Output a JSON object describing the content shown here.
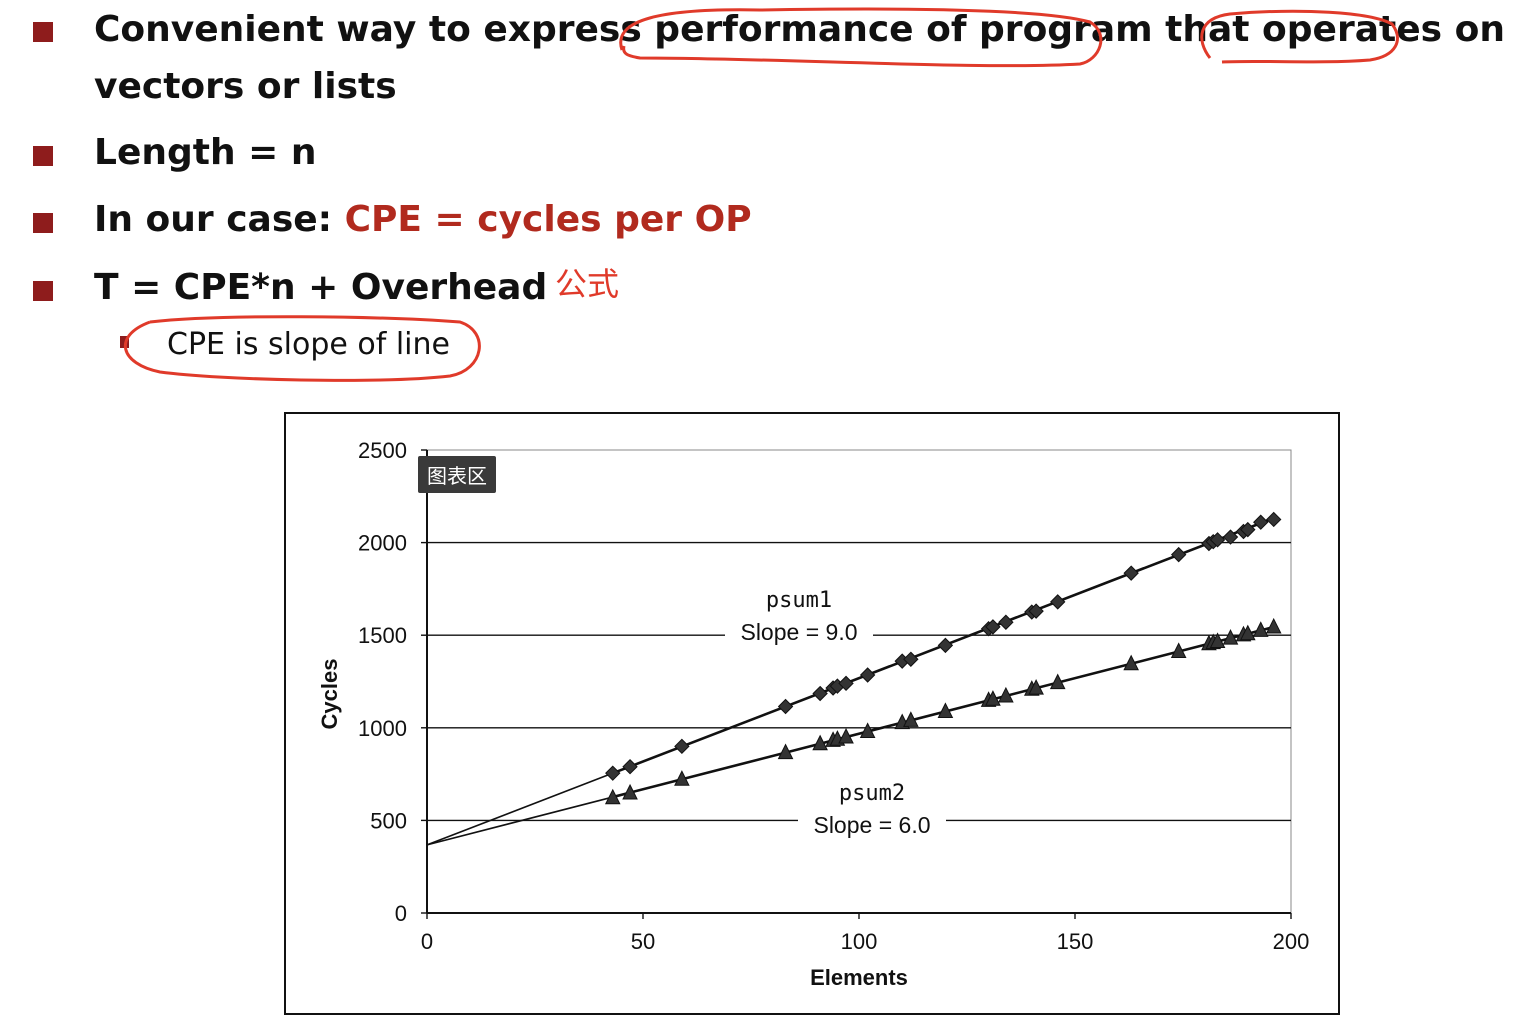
{
  "bullets": {
    "b1_text": "Convenient way to express performance of program that operates on",
    "b1_cont": "vectors or lists",
    "b2": "Length = n",
    "b3_prefix": "In our case: ",
    "b3_accent": "CPE = cycles per OP",
    "b4": "T = CPE*n + Overhead",
    "b4_note": "公式",
    "sub": "CPE is slope of line"
  },
  "tooltip": "图表区",
  "colors": {
    "bullet": "#8e1c1c",
    "accent": "#b12a1e",
    "annotation": "#e03a2a"
  },
  "chart_data": {
    "type": "scatter",
    "xlabel": "Elements",
    "ylabel": "Cycles",
    "xlim": [
      0,
      200
    ],
    "ylim": [
      0,
      2500
    ],
    "xticks": [
      "0",
      "50",
      "100",
      "150",
      "200"
    ],
    "yticks": [
      "0",
      "500",
      "1000",
      "1500",
      "2000",
      "2500"
    ],
    "grid": "horizontal",
    "series": [
      {
        "name": "psum1",
        "label": "Slope = 9.0",
        "marker": "diamond",
        "fit": {
          "intercept": 368,
          "slope": 9.0
        },
        "x": [
          43,
          47,
          59,
          83,
          91,
          94,
          95,
          97,
          102,
          110,
          112,
          120,
          130,
          131,
          134,
          140,
          141,
          146,
          163,
          174,
          181,
          182,
          183,
          186,
          189,
          190,
          193,
          196
        ],
        "y": [
          755,
          790,
          900,
          1115,
          1185,
          1215,
          1225,
          1240,
          1285,
          1360,
          1370,
          1445,
          1535,
          1545,
          1570,
          1625,
          1630,
          1680,
          1835,
          1935,
          1995,
          2005,
          2015,
          2030,
          2060,
          2070,
          2110,
          2125
        ]
      },
      {
        "name": "psum2",
        "label": "Slope = 6.0",
        "marker": "triangle",
        "fit": {
          "intercept": 368,
          "slope": 6.0
        },
        "x": [
          43,
          47,
          59,
          83,
          91,
          94,
          95,
          97,
          102,
          110,
          112,
          120,
          130,
          131,
          134,
          140,
          141,
          146,
          163,
          174,
          181,
          182,
          183,
          186,
          189,
          190,
          193,
          196
        ],
        "y": [
          622,
          648,
          722,
          866,
          914,
          932,
          938,
          950,
          980,
          1028,
          1040,
          1088,
          1148,
          1154,
          1172,
          1208,
          1214,
          1244,
          1346,
          1412,
          1454,
          1460,
          1466,
          1484,
          1502,
          1508,
          1526,
          1544
        ]
      }
    ]
  }
}
